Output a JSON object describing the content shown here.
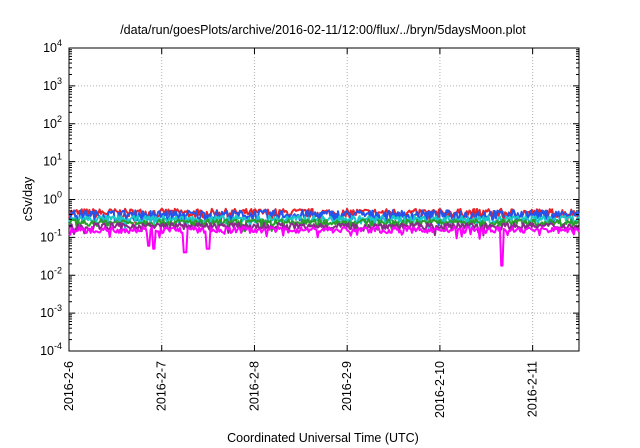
{
  "chart_data": {
    "type": "line",
    "title": "/data/run/goesPlots/archive/2016-02-11/12:00/flux/../bryn/5daysMoon.plot",
    "xlabel": "Coordinated Universal Time (UTC)",
    "ylabel": "cSv/day",
    "y_scale": "log",
    "ylim": [
      0.0001,
      10000
    ],
    "y_ticks": [
      {
        "value": 0.0001,
        "base": "10",
        "exp": "-4"
      },
      {
        "value": 0.001,
        "base": "10",
        "exp": "-3"
      },
      {
        "value": 0.01,
        "base": "10",
        "exp": "-2"
      },
      {
        "value": 0.1,
        "base": "10",
        "exp": "-1"
      },
      {
        "value": 1,
        "base": "10",
        "exp": "0"
      },
      {
        "value": 10,
        "base": "10",
        "exp": "1"
      },
      {
        "value": 100,
        "base": "10",
        "exp": "2"
      },
      {
        "value": 1000,
        "base": "10",
        "exp": "3"
      },
      {
        "value": 10000,
        "base": "10",
        "exp": "4"
      }
    ],
    "x_ticks": [
      "2016-2-6",
      "2016-2-7",
      "2016-2-8",
      "2016-2-9",
      "2016-2-10",
      "2016-2-11"
    ],
    "xlim": [
      "2016-02-06T00:00",
      "2016-02-11T12:00"
    ],
    "grid": true,
    "legend": "none",
    "series": [
      {
        "color": "#e8222a",
        "base": 0.45,
        "amp": 0.12,
        "dips": []
      },
      {
        "color": "#2255ee",
        "base": 0.4,
        "amp": 0.12,
        "dips": []
      },
      {
        "color": "#19c8c8",
        "base": 0.3,
        "amp": 0.07,
        "dips": []
      },
      {
        "color": "#2a9e2a",
        "base": 0.25,
        "amp": 0.05,
        "dips": []
      },
      {
        "color": "#8a2a8a",
        "base": 0.2,
        "amp": 0.04,
        "dips": []
      },
      {
        "color": "#ff00ff",
        "base": 0.16,
        "amp": 0.03,
        "dips": [
          [
            "2016-02-06T20:30",
            0.06
          ],
          [
            "2016-02-06T22:00",
            0.05
          ],
          [
            "2016-02-07T06:00",
            0.04
          ],
          [
            "2016-02-07T12:00",
            0.05
          ],
          [
            "2016-02-10T16:00",
            0.018
          ]
        ]
      }
    ]
  }
}
